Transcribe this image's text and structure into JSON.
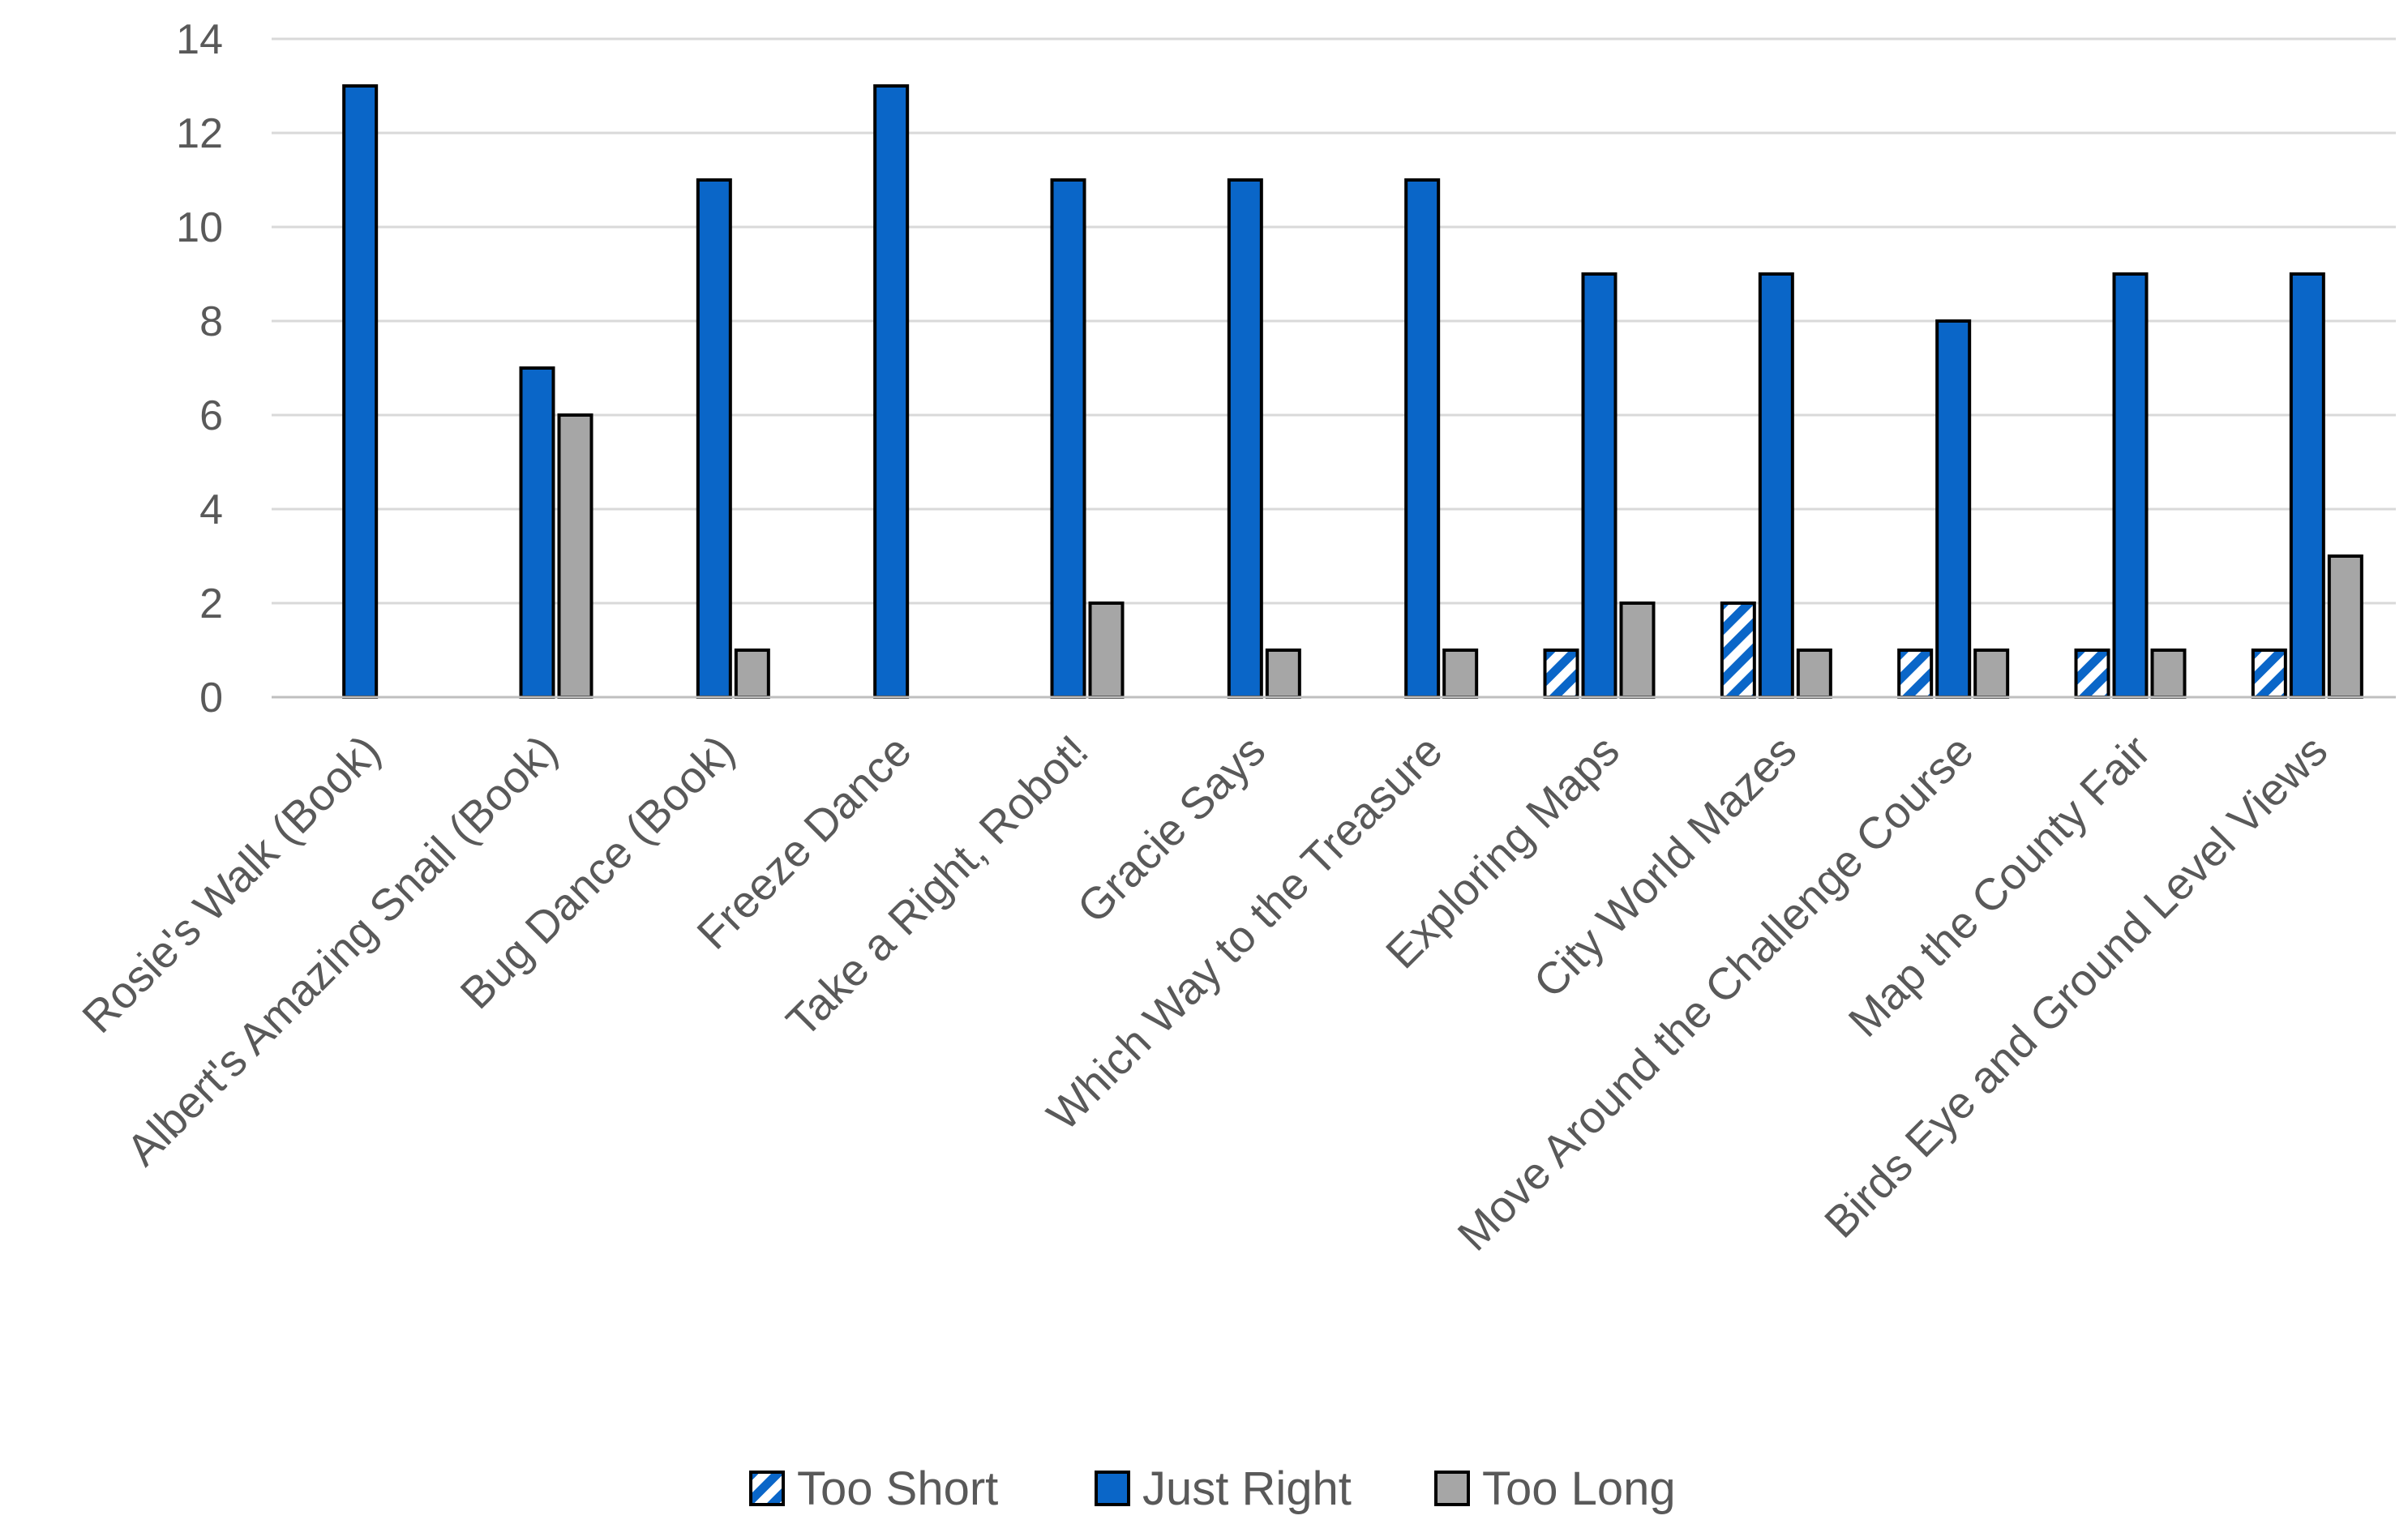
{
  "chart_data": {
    "type": "bar",
    "title": "",
    "xlabel": "",
    "ylabel": "",
    "ylim": [
      0,
      14
    ],
    "yticks": [
      0,
      2,
      4,
      6,
      8,
      10,
      12,
      14
    ],
    "grid": true,
    "legend_position": "bottom",
    "categories": [
      "Rosie's Walk (Book)",
      "Albert's Amazing Snail (Book)",
      "Bug Dance (Book)",
      "Freeze Dance",
      "Take a Right, Robot!",
      "Gracie Says",
      "Which Way to the Treasure",
      "Exploring Maps",
      "City World Mazes",
      "Move Around the Challenge Course",
      "Map the County Fair",
      "Birds Eye and Ground Level Views"
    ],
    "series": [
      {
        "name": "Too Short",
        "color": "#0a66c8",
        "pattern": "diagonal-stripes",
        "values": [
          0,
          0,
          0,
          0,
          0,
          0,
          0,
          1,
          2,
          1,
          1,
          1
        ]
      },
      {
        "name": "Just Right",
        "color": "#0a66c8",
        "pattern": "solid",
        "values": [
          13,
          7,
          11,
          13,
          11,
          11,
          11,
          9,
          9,
          8,
          9,
          9
        ]
      },
      {
        "name": "Too Long",
        "color": "#a6a6a6",
        "pattern": "solid",
        "values": [
          0,
          6,
          1,
          0,
          2,
          1,
          1,
          2,
          1,
          1,
          1,
          3
        ]
      }
    ]
  }
}
